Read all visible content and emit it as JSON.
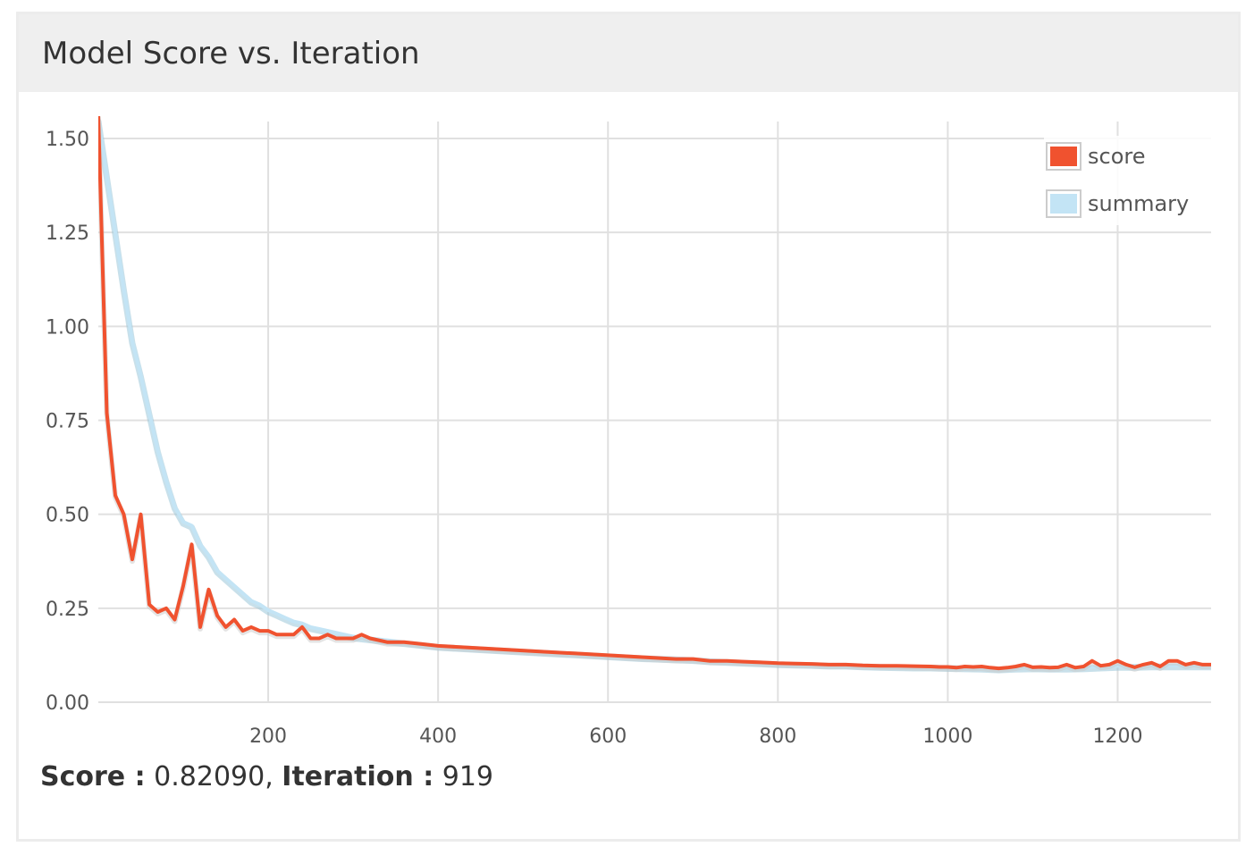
{
  "panel": {
    "title": "Model Score vs. Iteration"
  },
  "readout": {
    "score_label": "Score :",
    "score_value": "0.82090,",
    "iteration_label": "Iteration :",
    "iteration_value": "919"
  },
  "colors": {
    "score": "#f0522f",
    "summary": "#c3e4f5",
    "grid": "#e0e0e0",
    "header_bg": "#efefef"
  },
  "chart_data": {
    "type": "line",
    "title": "Model Score vs. Iteration",
    "xlabel": "",
    "ylabel": "",
    "xlim": [
      0,
      1310
    ],
    "ylim": [
      0,
      1.5
    ],
    "xticks": [
      "200",
      "400",
      "600",
      "800",
      "1000",
      "1200"
    ],
    "yticks": [
      "0.00",
      "0.25",
      "0.50",
      "0.75",
      "1.00",
      "1.25",
      "1.50"
    ],
    "grid": true,
    "legend": "top-right",
    "series": [
      {
        "name": "score",
        "color": "#f0522f",
        "x": [
          0,
          10,
          20,
          30,
          40,
          50,
          60,
          70,
          80,
          90,
          100,
          110,
          120,
          130,
          140,
          150,
          160,
          170,
          180,
          190,
          200,
          210,
          220,
          230,
          240,
          250,
          260,
          270,
          280,
          290,
          300,
          310,
          320,
          340,
          360,
          380,
          400,
          440,
          480,
          520,
          560,
          600,
          640,
          680,
          700,
          720,
          740,
          760,
          780,
          800,
          820,
          840,
          860,
          880,
          900,
          920,
          940,
          960,
          980,
          990,
          1000,
          1010,
          1020,
          1030,
          1040,
          1050,
          1060,
          1070,
          1080,
          1090,
          1100,
          1110,
          1120,
          1130,
          1140,
          1150,
          1160,
          1170,
          1180,
          1190,
          1200,
          1210,
          1220,
          1230,
          1240,
          1250,
          1260,
          1270,
          1280,
          1290,
          1300,
          1310
        ],
        "y": [
          1.56,
          0.77,
          0.55,
          0.5,
          0.38,
          0.5,
          0.26,
          0.24,
          0.25,
          0.22,
          0.31,
          0.42,
          0.2,
          0.3,
          0.23,
          0.2,
          0.22,
          0.19,
          0.2,
          0.19,
          0.19,
          0.18,
          0.18,
          0.18,
          0.2,
          0.17,
          0.17,
          0.18,
          0.17,
          0.17,
          0.17,
          0.18,
          0.17,
          0.16,
          0.16,
          0.155,
          0.15,
          0.145,
          0.14,
          0.135,
          0.13,
          0.125,
          0.12,
          0.115,
          0.115,
          0.11,
          0.11,
          0.108,
          0.106,
          0.104,
          0.103,
          0.102,
          0.1,
          0.1,
          0.098,
          0.097,
          0.097,
          0.096,
          0.095,
          0.094,
          0.094,
          0.092,
          0.095,
          0.094,
          0.095,
          0.092,
          0.09,
          0.092,
          0.095,
          0.1,
          0.093,
          0.094,
          0.092,
          0.093,
          0.1,
          0.092,
          0.095,
          0.11,
          0.097,
          0.1,
          0.11,
          0.1,
          0.093,
          0.1,
          0.105,
          0.095,
          0.11,
          0.11,
          0.1,
          0.105,
          0.1,
          0.1
        ]
      },
      {
        "name": "summary",
        "color": "#c3e4f5",
        "x": [
          0,
          10,
          20,
          30,
          40,
          50,
          60,
          70,
          80,
          90,
          100,
          110,
          120,
          130,
          140,
          150,
          160,
          170,
          180,
          190,
          200,
          210,
          220,
          230,
          240,
          250,
          260,
          270,
          280,
          290,
          300,
          320,
          340,
          360,
          380,
          400,
          440,
          480,
          520,
          560,
          600,
          640,
          680,
          700,
          720,
          740,
          760,
          780,
          800,
          820,
          840,
          860,
          880,
          900,
          920,
          940,
          960,
          980,
          1000,
          1020,
          1040,
          1060,
          1080,
          1100,
          1120,
          1140,
          1160,
          1180,
          1200,
          1220,
          1240,
          1260,
          1280,
          1300,
          1310
        ],
        "y": [
          1.55,
          1.4,
          1.25,
          1.1,
          0.96,
          0.87,
          0.77,
          0.67,
          0.59,
          0.52,
          0.48,
          0.47,
          0.42,
          0.39,
          0.35,
          0.33,
          0.31,
          0.29,
          0.27,
          0.26,
          0.245,
          0.235,
          0.225,
          0.215,
          0.21,
          0.2,
          0.195,
          0.19,
          0.185,
          0.18,
          0.175,
          0.17,
          0.165,
          0.16,
          0.155,
          0.15,
          0.145,
          0.14,
          0.135,
          0.13,
          0.125,
          0.12,
          0.117,
          0.115,
          0.112,
          0.11,
          0.108,
          0.106,
          0.104,
          0.103,
          0.102,
          0.1,
          0.1,
          0.098,
          0.097,
          0.096,
          0.095,
          0.095,
          0.094,
          0.093,
          0.092,
          0.09,
          0.092,
          0.093,
          0.092,
          0.092,
          0.093,
          0.095,
          0.097,
          0.097,
          0.098,
          0.098,
          0.098,
          0.098,
          0.098
        ]
      }
    ]
  }
}
